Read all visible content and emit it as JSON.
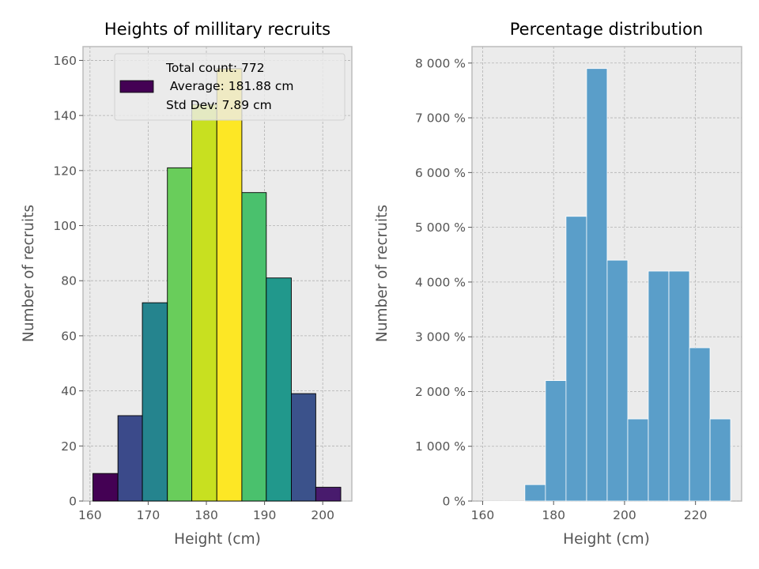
{
  "chart_data": [
    {
      "type": "bar",
      "title": "Heights of millitary recruits",
      "xlabel": "Height (cm)",
      "ylabel": "Number of recruits",
      "xlim": [
        158.8,
        205
      ],
      "ylim": [
        0,
        165
      ],
      "xticks": [
        160,
        170,
        180,
        190,
        200
      ],
      "xtick_labels": [
        "160",
        "170",
        "180",
        "190",
        "200"
      ],
      "yticks": [
        0,
        20,
        40,
        60,
        80,
        100,
        120,
        140,
        160
      ],
      "ytick_labels": [
        "0",
        "20",
        "40",
        "60",
        "80",
        "100",
        "120",
        "140",
        "160"
      ],
      "grid": true,
      "bins": [
        {
          "left": 160.5,
          "right": 164.8,
          "value": 10,
          "color": "#440154"
        },
        {
          "left": 164.8,
          "right": 169.0,
          "value": 31,
          "color": "#3b4a8a"
        },
        {
          "left": 169.0,
          "right": 173.3,
          "value": 72,
          "color": "#25848e"
        },
        {
          "left": 173.3,
          "right": 177.5,
          "value": 121,
          "color": "#69cd5b"
        },
        {
          "left": 177.5,
          "right": 181.8,
          "value": 144,
          "color": "#c8e020"
        },
        {
          "left": 181.8,
          "right": 186.1,
          "value": 157,
          "color": "#fde725"
        },
        {
          "left": 186.1,
          "right": 190.3,
          "value": 112,
          "color": "#4ac16d"
        },
        {
          "left": 190.3,
          "right": 194.6,
          "value": 81,
          "color": "#21988c"
        },
        {
          "left": 194.6,
          "right": 198.8,
          "value": 39,
          "color": "#3b528b"
        },
        {
          "left": 198.8,
          "right": 203.1,
          "value": 5,
          "color": "#481b6d"
        }
      ],
      "legend": {
        "placement": "top-right",
        "swatch_color": "#440154",
        "lines": [
          "Total count: 772",
          " Average: 181.88 cm",
          "Std Dev: 7.89 cm"
        ]
      }
    },
    {
      "type": "bar",
      "title": "Percentage distribution",
      "xlabel": "Height (cm)",
      "ylabel": "Number of recruits",
      "xlim": [
        157,
        233
      ],
      "ylim": [
        0,
        8300
      ],
      "xticks": [
        160,
        180,
        200,
        220
      ],
      "xtick_labels": [
        "160",
        "180",
        "200",
        "220"
      ],
      "yticks": [
        0,
        1000,
        2000,
        3000,
        4000,
        5000,
        6000,
        7000,
        8000
      ],
      "ytick_labels": [
        "0 %",
        "1 000 %",
        "2 000 %",
        "3 000 %",
        "4 000 %",
        "5 000 %",
        "6 000 %",
        "7 000 %",
        "8 000 %"
      ],
      "grid": true,
      "color": "#5a9ec9",
      "bins": [
        {
          "left": 160.3,
          "right": 166.1,
          "value": 0
        },
        {
          "left": 166.1,
          "right": 171.9,
          "value": 0
        },
        {
          "left": 171.9,
          "right": 177.7,
          "value": 300
        },
        {
          "left": 177.7,
          "right": 183.5,
          "value": 2200
        },
        {
          "left": 183.5,
          "right": 189.3,
          "value": 5200
        },
        {
          "left": 189.3,
          "right": 195.1,
          "value": 7900
        },
        {
          "left": 195.1,
          "right": 200.9,
          "value": 4400
        },
        {
          "left": 200.9,
          "right": 206.7,
          "value": 1500
        },
        {
          "left": 206.7,
          "right": 212.5,
          "value": 4200
        },
        {
          "left": 212.5,
          "right": 218.3,
          "value": 4200
        },
        {
          "left": 218.3,
          "right": 224.1,
          "value": 2800
        },
        {
          "left": 224.1,
          "right": 229.9,
          "value": 1500
        }
      ]
    }
  ]
}
